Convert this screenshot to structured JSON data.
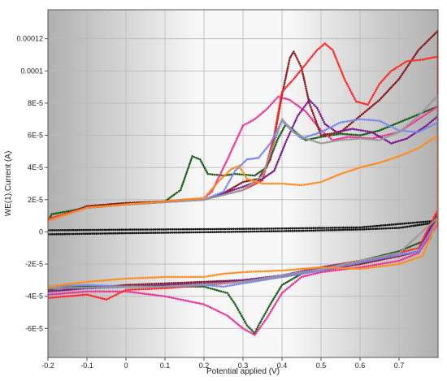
{
  "chart_data": {
    "type": "scatter",
    "title": "",
    "xlabel": "Potential applied (V)",
    "ylabel": "WE(1).Current (A)",
    "xlim": [
      -0.2,
      0.8
    ],
    "ylim": [
      -7.8e-05,
      0.000138
    ],
    "grid": true,
    "legend": "none",
    "x_ticks": [
      {
        "v": -0.2,
        "label": "-0.2"
      },
      {
        "v": -0.1,
        "label": "-0.1"
      },
      {
        "v": 0.0,
        "label": "0"
      },
      {
        "v": 0.1,
        "label": "0.1"
      },
      {
        "v": 0.2,
        "label": "0.2"
      },
      {
        "v": 0.3,
        "label": "0.3"
      },
      {
        "v": 0.4,
        "label": "0.4"
      },
      {
        "v": 0.5,
        "label": "0.5"
      },
      {
        "v": 0.6,
        "label": "0.6"
      },
      {
        "v": 0.7,
        "label": "0.7"
      }
    ],
    "y_ticks": [
      {
        "v": 0.00012,
        "label": "0.00012"
      },
      {
        "v": 0.0001,
        "label": "0.0001"
      },
      {
        "v": 8e-05,
        "label": "8E-5"
      },
      {
        "v": 6e-05,
        "label": "6E-5"
      },
      {
        "v": 4e-05,
        "label": "4E-5"
      },
      {
        "v": 2e-05,
        "label": "2E-5"
      },
      {
        "v": 0.0,
        "label": "0"
      },
      {
        "v": -2e-05,
        "label": "-2E-5"
      },
      {
        "v": -4e-05,
        "label": "-4E-5"
      },
      {
        "v": -6e-05,
        "label": "-6E-5"
      }
    ],
    "series": [
      {
        "color": "#111111",
        "points": [
          [
            -0.2,
            -1.5e-06
          ],
          [
            0.0,
            -8e-07
          ],
          [
            0.2,
            -2e-07
          ],
          [
            0.4,
            5e-07
          ],
          [
            0.6,
            1.5e-06
          ],
          [
            0.7,
            2.5e-06
          ],
          [
            0.8,
            6e-06
          ],
          [
            0.8,
            7e-06
          ],
          [
            0.6,
            2.8e-06
          ],
          [
            0.4,
            2.1e-06
          ],
          [
            0.2,
            1.7e-06
          ],
          [
            0.0,
            1.4e-06
          ],
          [
            -0.2,
            1e-06
          ]
        ]
      },
      {
        "color": "#1a5c1a",
        "points": [
          [
            -0.2,
            7e-06
          ],
          [
            -0.19,
            1.1e-05
          ],
          [
            -0.1,
            1.5e-05
          ],
          [
            0.0,
            1.7e-05
          ],
          [
            0.1,
            1.9e-05
          ],
          [
            0.14,
            2.6e-05
          ],
          [
            0.17,
            4.7e-05
          ],
          [
            0.19,
            4.5e-05
          ],
          [
            0.21,
            3.6e-05
          ],
          [
            0.25,
            3.5e-05
          ],
          [
            0.28,
            3.6e-05
          ],
          [
            0.33,
            3.5e-05
          ],
          [
            0.36,
            4e-05
          ],
          [
            0.39,
            5.8e-05
          ],
          [
            0.41,
            6.7e-05
          ],
          [
            0.43,
            6.3e-05
          ],
          [
            0.46,
            5.7e-05
          ],
          [
            0.5,
            5.9e-05
          ],
          [
            0.55,
            6.1e-05
          ],
          [
            0.6,
            6e-05
          ],
          [
            0.65,
            6.3e-05
          ],
          [
            0.7,
            6.8e-05
          ],
          [
            0.75,
            7.3e-05
          ],
          [
            0.8,
            7.8e-05
          ],
          [
            0.8,
            1.3e-05
          ],
          [
            0.78,
            -4e-06
          ],
          [
            0.7,
            -1.2e-05
          ],
          [
            0.6,
            -1.8e-05
          ],
          [
            0.5,
            -2.2e-05
          ],
          [
            0.45,
            -2.6e-05
          ],
          [
            0.4,
            -3.3e-05
          ],
          [
            0.37,
            -4.5e-05
          ],
          [
            0.34,
            -5.8e-05
          ],
          [
            0.33,
            -6.3e-05
          ],
          [
            0.31,
            -5.8e-05
          ],
          [
            0.28,
            -4.5e-05
          ],
          [
            0.26,
            -3.8e-05
          ],
          [
            0.2,
            -3.4e-05
          ],
          [
            0.0,
            -3.4e-05
          ],
          [
            -0.15,
            -3.4e-05
          ],
          [
            -0.2,
            -3.6e-05
          ]
        ]
      },
      {
        "color": "#ee3399",
        "points": [
          [
            -0.2,
            8e-06
          ],
          [
            -0.1,
            1.5e-05
          ],
          [
            0.0,
            1.7e-05
          ],
          [
            0.15,
            2e-05
          ],
          [
            0.2,
            2.1e-05
          ],
          [
            0.22,
            2.5e-05
          ],
          [
            0.26,
            4.5e-05
          ],
          [
            0.3,
            6.6e-05
          ],
          [
            0.33,
            7e-05
          ],
          [
            0.36,
            7.6e-05
          ],
          [
            0.39,
            8.4e-05
          ],
          [
            0.42,
            8.2e-05
          ],
          [
            0.46,
            7.5e-05
          ],
          [
            0.48,
            6.9e-05
          ],
          [
            0.5,
            6.3e-05
          ],
          [
            0.53,
            5.7e-05
          ],
          [
            0.57,
            5.9e-05
          ],
          [
            0.63,
            5.8e-05
          ],
          [
            0.7,
            6.2e-05
          ],
          [
            0.75,
            7e-05
          ],
          [
            0.8,
            7.8e-05
          ],
          [
            0.8,
            5e-06
          ],
          [
            0.75,
            -1.3e-05
          ],
          [
            0.7,
            -1.8e-05
          ],
          [
            0.6,
            -2.2e-05
          ],
          [
            0.5,
            -2.5e-05
          ],
          [
            0.45,
            -2.8e-05
          ],
          [
            0.4,
            -3.8e-05
          ],
          [
            0.36,
            -5.4e-05
          ],
          [
            0.33,
            -6.4e-05
          ],
          [
            0.3,
            -6e-05
          ],
          [
            0.26,
            -5.2e-05
          ],
          [
            0.2,
            -4.5e-05
          ],
          [
            0.1,
            -4e-05
          ],
          [
            0.0,
            -3.7e-05
          ],
          [
            -0.1,
            -3.7e-05
          ],
          [
            -0.2,
            -3.9e-05
          ]
        ]
      },
      {
        "color": "#8b1a1a",
        "points": [
          [
            -0.2,
            7e-06
          ],
          [
            -0.1,
            1.6e-05
          ],
          [
            0.0,
            1.8e-05
          ],
          [
            0.2,
            2e-05
          ],
          [
            0.25,
            2.4e-05
          ],
          [
            0.3,
            3.1e-05
          ],
          [
            0.34,
            3.3e-05
          ],
          [
            0.37,
            4.5e-05
          ],
          [
            0.4,
            8.5e-05
          ],
          [
            0.42,
            0.000108
          ],
          [
            0.43,
            0.000112
          ],
          [
            0.45,
            0.000102
          ],
          [
            0.47,
            8e-05
          ],
          [
            0.5,
            6e-05
          ],
          [
            0.55,
            6.2e-05
          ],
          [
            0.6,
            7.2e-05
          ],
          [
            0.65,
            8.2e-05
          ],
          [
            0.7,
            9.5e-05
          ],
          [
            0.75,
            0.000113
          ],
          [
            0.8,
            0.000125
          ],
          [
            0.8,
            1.2e-05
          ],
          [
            0.75,
            -1.2e-05
          ],
          [
            0.7,
            -1.5e-05
          ],
          [
            0.6,
            -2e-05
          ],
          [
            0.5,
            -2.4e-05
          ],
          [
            0.4,
            -2.8e-05
          ],
          [
            0.3,
            -3e-05
          ],
          [
            0.2,
            -3.1e-05
          ],
          [
            0.1,
            -3.2e-05
          ],
          [
            0.0,
            -3.3e-05
          ],
          [
            -0.1,
            -3.5e-05
          ],
          [
            -0.2,
            -3.5e-05
          ]
        ]
      },
      {
        "color": "#ff2a2a",
        "points": [
          [
            -0.2,
            8e-06
          ],
          [
            -0.1,
            1.5e-05
          ],
          [
            0.0,
            1.7e-05
          ],
          [
            0.2,
            2e-05
          ],
          [
            0.3,
            2.6e-05
          ],
          [
            0.35,
            3.2e-05
          ],
          [
            0.38,
            6e-05
          ],
          [
            0.4,
            8.7e-05
          ],
          [
            0.43,
            9.5e-05
          ],
          [
            0.46,
            0.000104
          ],
          [
            0.49,
            0.000113
          ],
          [
            0.51,
            0.000117
          ],
          [
            0.53,
            0.000113
          ],
          [
            0.56,
            9.5e-05
          ],
          [
            0.59,
            8.1e-05
          ],
          [
            0.62,
            7.9e-05
          ],
          [
            0.65,
            9.2e-05
          ],
          [
            0.68,
            0.0001
          ],
          [
            0.72,
            0.000106
          ],
          [
            0.76,
            0.000107
          ],
          [
            0.8,
            0.000109
          ],
          [
            0.8,
            1.4e-05
          ],
          [
            0.75,
            -1e-05
          ],
          [
            0.65,
            -1.6e-05
          ],
          [
            0.5,
            -2.2e-05
          ],
          [
            0.4,
            -2.8e-05
          ],
          [
            0.3,
            -3.1e-05
          ],
          [
            0.2,
            -3.3e-05
          ],
          [
            0.1,
            -3.5e-05
          ],
          [
            0.0,
            -3.6e-05
          ],
          [
            -0.05,
            -4.2e-05
          ],
          [
            -0.1,
            -3.9e-05
          ],
          [
            -0.2,
            -4.1e-05
          ]
        ]
      },
      {
        "color": "#7a1a8a",
        "points": [
          [
            -0.2,
            7e-06
          ],
          [
            -0.1,
            1.5e-05
          ],
          [
            0.0,
            1.7e-05
          ],
          [
            0.2,
            2e-05
          ],
          [
            0.3,
            2.8e-05
          ],
          [
            0.35,
            3.3e-05
          ],
          [
            0.38,
            3.8e-05
          ],
          [
            0.41,
            5.6e-05
          ],
          [
            0.44,
            7.2e-05
          ],
          [
            0.47,
            8.2e-05
          ],
          [
            0.49,
            7.7e-05
          ],
          [
            0.51,
            6.7e-05
          ],
          [
            0.54,
            6.2e-05
          ],
          [
            0.58,
            6.4e-05
          ],
          [
            0.63,
            6.2e-05
          ],
          [
            0.68,
            5.5e-05
          ],
          [
            0.72,
            5.8e-05
          ],
          [
            0.77,
            6.6e-05
          ],
          [
            0.8,
            7.2e-05
          ],
          [
            0.8,
            1.1e-05
          ],
          [
            0.75,
            -1.2e-05
          ],
          [
            0.65,
            -1.7e-05
          ],
          [
            0.5,
            -2.2e-05
          ],
          [
            0.4,
            -2.7e-05
          ],
          [
            0.3,
            -3e-05
          ],
          [
            0.2,
            -3.2e-05
          ],
          [
            0.1,
            -3.3e-05
          ],
          [
            0.0,
            -3.4e-05
          ],
          [
            -0.1,
            -3.5e-05
          ],
          [
            -0.2,
            -3.7e-05
          ]
        ]
      },
      {
        "color": "#7788ee",
        "points": [
          [
            -0.2,
            7e-06
          ],
          [
            -0.1,
            1.5e-05
          ],
          [
            0.0,
            1.7e-05
          ],
          [
            0.2,
            2e-05
          ],
          [
            0.25,
            2.5e-05
          ],
          [
            0.28,
            3.8e-05
          ],
          [
            0.31,
            4.5e-05
          ],
          [
            0.34,
            4.6e-05
          ],
          [
            0.37,
            5.5e-05
          ],
          [
            0.4,
            6.9e-05
          ],
          [
            0.42,
            6.4e-05
          ],
          [
            0.45,
            5.8e-05
          ],
          [
            0.5,
            6.2e-05
          ],
          [
            0.55,
            6.8e-05
          ],
          [
            0.6,
            7e-05
          ],
          [
            0.65,
            6.9e-05
          ],
          [
            0.7,
            6.3e-05
          ],
          [
            0.75,
            6.2e-05
          ],
          [
            0.8,
            6.8e-05
          ],
          [
            0.8,
            8e-06
          ],
          [
            0.75,
            -1.2e-05
          ],
          [
            0.6,
            -1.9e-05
          ],
          [
            0.5,
            -2.4e-05
          ],
          [
            0.4,
            -2.8e-05
          ],
          [
            0.3,
            -3.2e-05
          ],
          [
            0.25,
            -3.4e-05
          ],
          [
            0.2,
            -3.3e-05
          ],
          [
            0.1,
            -3.4e-05
          ],
          [
            0.0,
            -3.4e-05
          ],
          [
            -0.1,
            -3.3e-05
          ],
          [
            -0.2,
            -3.4e-05
          ]
        ]
      },
      {
        "color": "#999999",
        "points": [
          [
            -0.2,
            7e-06
          ],
          [
            -0.1,
            1.5e-05
          ],
          [
            0.0,
            1.7e-05
          ],
          [
            0.2,
            2e-05
          ],
          [
            0.3,
            2.6e-05
          ],
          [
            0.35,
            3.5e-05
          ],
          [
            0.38,
            5.5e-05
          ],
          [
            0.4,
            7e-05
          ],
          [
            0.43,
            6.2e-05
          ],
          [
            0.46,
            5.8e-05
          ],
          [
            0.5,
            5.5e-05
          ],
          [
            0.55,
            5.7e-05
          ],
          [
            0.6,
            5.8e-05
          ],
          [
            0.65,
            5.7e-05
          ],
          [
            0.7,
            6.2e-05
          ],
          [
            0.75,
            7.2e-05
          ],
          [
            0.8,
            8.5e-05
          ],
          [
            0.8,
            9e-06
          ],
          [
            0.7,
            -1.3e-05
          ],
          [
            0.5,
            -2.3e-05
          ],
          [
            0.3,
            -3.1e-05
          ],
          [
            0.1,
            -3.4e-05
          ],
          [
            -0.2,
            -3.5e-05
          ]
        ]
      },
      {
        "color": "#ff8c1a",
        "points": [
          [
            -0.2,
            7e-06
          ],
          [
            -0.1,
            1.5e-05
          ],
          [
            0.0,
            1.7e-05
          ],
          [
            0.2,
            2.1e-05
          ],
          [
            0.24,
            3.2e-05
          ],
          [
            0.27,
            3.9e-05
          ],
          [
            0.29,
            4.1e-05
          ],
          [
            0.31,
            3.3e-05
          ],
          [
            0.35,
            3e-05
          ],
          [
            0.4,
            3e-05
          ],
          [
            0.45,
            2.9e-05
          ],
          [
            0.5,
            3.1e-05
          ],
          [
            0.55,
            3.6e-05
          ],
          [
            0.6,
            4e-05
          ],
          [
            0.65,
            4.3e-05
          ],
          [
            0.7,
            4.7e-05
          ],
          [
            0.75,
            5.2e-05
          ],
          [
            0.8,
            6e-05
          ],
          [
            0.8,
            8e-06
          ],
          [
            0.76,
            -1.5e-05
          ],
          [
            0.7,
            -2e-05
          ],
          [
            0.6,
            -2.3e-05
          ],
          [
            0.5,
            -2.2e-05
          ],
          [
            0.4,
            -2.4e-05
          ],
          [
            0.3,
            -2.5e-05
          ],
          [
            0.25,
            -2.6e-05
          ],
          [
            0.2,
            -2.8e-05
          ],
          [
            0.1,
            -2.8e-05
          ],
          [
            0.0,
            -2.9e-05
          ],
          [
            -0.1,
            -3.1e-05
          ],
          [
            -0.2,
            -3.4e-05
          ]
        ]
      }
    ]
  }
}
